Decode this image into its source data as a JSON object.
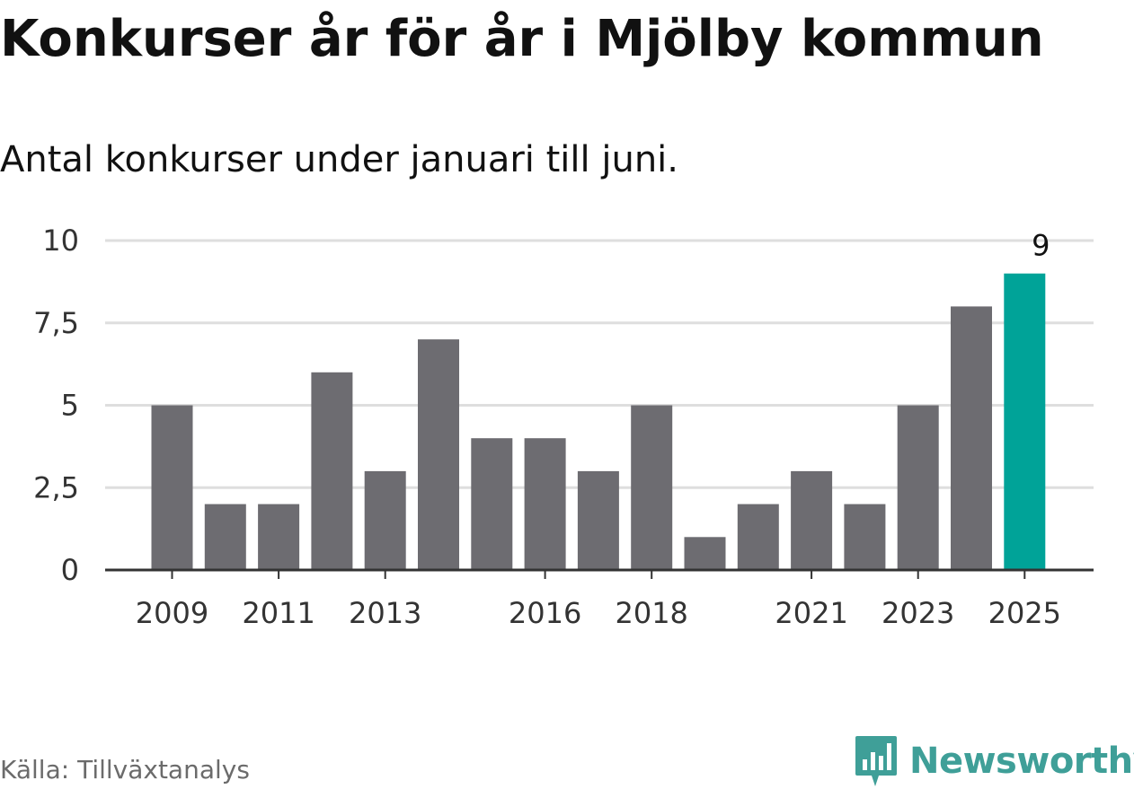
{
  "title": "Konkurser år för år i Mjölby kommun",
  "subtitle": "Antal konkurser under januari till juni.",
  "source": "Källa: Tillväxtanalys",
  "brand": {
    "name": "Newsworthy",
    "icon": "newsworthy-logo-icon"
  },
  "colors": {
    "bar": "#6d6c71",
    "highlight": "#00a398",
    "grid": "#dedede",
    "axis": "#333333",
    "text": "#111111",
    "brand": "#3f9f98"
  },
  "chart_data": {
    "type": "bar",
    "categories": [
      "2009",
      "2010",
      "2011",
      "2012",
      "2013",
      "2014",
      "2015",
      "2016",
      "2017",
      "2018",
      "2019",
      "2020",
      "2021",
      "2022",
      "2023",
      "2024",
      "2025"
    ],
    "values": [
      5,
      2,
      2,
      6,
      3,
      7,
      4,
      4,
      3,
      5,
      1,
      2,
      3,
      2,
      5,
      8,
      9
    ],
    "x_tick_labels": [
      "2009",
      "2011",
      "2013",
      "2016",
      "2018",
      "2021",
      "2023",
      "2025"
    ],
    "y_ticks": [
      0,
      2.5,
      5,
      7.5,
      10
    ],
    "y_tick_labels": [
      "0",
      "2,5",
      "5",
      "7,5",
      "10"
    ],
    "ylim": [
      0,
      10
    ],
    "highlight_category": "2025",
    "highlight_value_label": "9",
    "grid": true,
    "xlabel": "",
    "ylabel": ""
  }
}
